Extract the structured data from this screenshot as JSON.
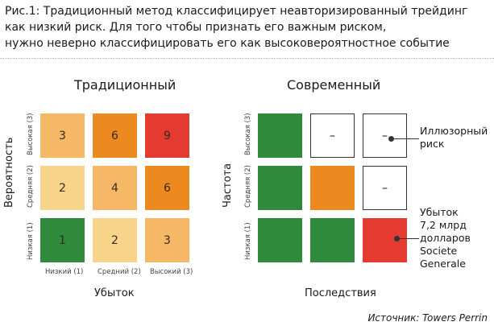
{
  "caption": {
    "line1": "Рис.1: Традиционный метод классифицирует неавторизированный трейдинг",
    "line2": "как низкий риск. Для того чтобы признать его важным риском,",
    "line3": "нужно неверно классифицировать его как высоковероятностное событие"
  },
  "traditional": {
    "title": "Традиционный",
    "y_axis_label": "Вероятность",
    "x_axis_label": "Убыток",
    "y_ticks": [
      "Высокая (3)",
      "Средняя (2)",
      "Низкая (1)"
    ],
    "x_ticks": [
      "Низкий (1)",
      "Средний (2)",
      "Высокий (3)"
    ],
    "rows": [
      [
        {
          "value": "3",
          "color": "#f5b867"
        },
        {
          "value": "6",
          "color": "#ec8a20"
        },
        {
          "value": "9",
          "color": "#e53a30"
        }
      ],
      [
        {
          "value": "2",
          "color": "#f8d38a"
        },
        {
          "value": "4",
          "color": "#f5b867"
        },
        {
          "value": "6",
          "color": "#ec8a20"
        }
      ],
      [
        {
          "value": "1",
          "color": "#2f8a3b"
        },
        {
          "value": "2",
          "color": "#f8d38a"
        },
        {
          "value": "3",
          "color": "#f5b867"
        }
      ]
    ]
  },
  "modern": {
    "title": "Современный",
    "y_axis_label": "Частота",
    "x_axis_label": "Последствия",
    "y_ticks": [
      "Высокая (3)",
      "Средняя (2)",
      "Низкая (1)"
    ],
    "rows": [
      [
        {
          "value": "",
          "color": "#2f8a3b"
        },
        {
          "value": "–",
          "color": ""
        },
        {
          "value": "–",
          "color": ""
        }
      ],
      [
        {
          "value": "",
          "color": "#2f8a3b"
        },
        {
          "value": "",
          "color": "#ec8a20"
        },
        {
          "value": "–",
          "color": ""
        }
      ],
      [
        {
          "value": "",
          "color": "#2f8a3b"
        },
        {
          "value": "",
          "color": "#2f8a3b"
        },
        {
          "value": "",
          "color": "#e53a30"
        }
      ]
    ],
    "note_illusory": [
      "Иллюзорный",
      "риск"
    ],
    "note_loss": [
      "Убыток",
      "7,2 млрд",
      "долларов",
      "Societe",
      "Generale"
    ]
  },
  "source": "Источник: Towers Perrin"
}
